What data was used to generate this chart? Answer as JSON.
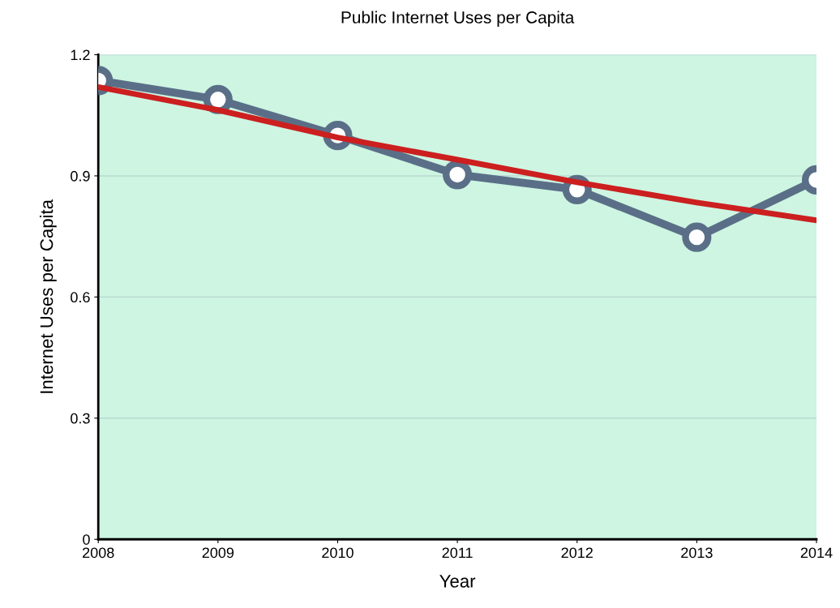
{
  "chart_data": {
    "type": "line",
    "title": "Public Internet Uses per Capita",
    "xlabel": "Year",
    "ylabel": "Internet Uses per Capita",
    "x": [
      2008,
      2009,
      2010,
      2011,
      2012,
      2013,
      2014
    ],
    "series": [
      {
        "color": "#5a6f87",
        "values": [
          1.136,
          1.089,
          1.0,
          0.903,
          0.866,
          0.748,
          0.89
        ],
        "marker": "circle"
      },
      {
        "type": "line",
        "color": "#cc1f1f",
        "values": [
          1.12,
          1.063,
          0.995,
          0.94,
          0.884,
          0.834,
          0.79
        ],
        "marker": "none"
      }
    ],
    "xlim": [
      2008,
      2014
    ],
    "xticks": [
      2008,
      2009,
      2010,
      2011,
      2012,
      2013,
      2014
    ],
    "ylim": [
      0,
      1.2
    ],
    "yticks": [
      {
        "value": 0,
        "label": "0"
      },
      0.3,
      0.6,
      0.9,
      1.2
    ],
    "grid": "y",
    "legend": false
  }
}
